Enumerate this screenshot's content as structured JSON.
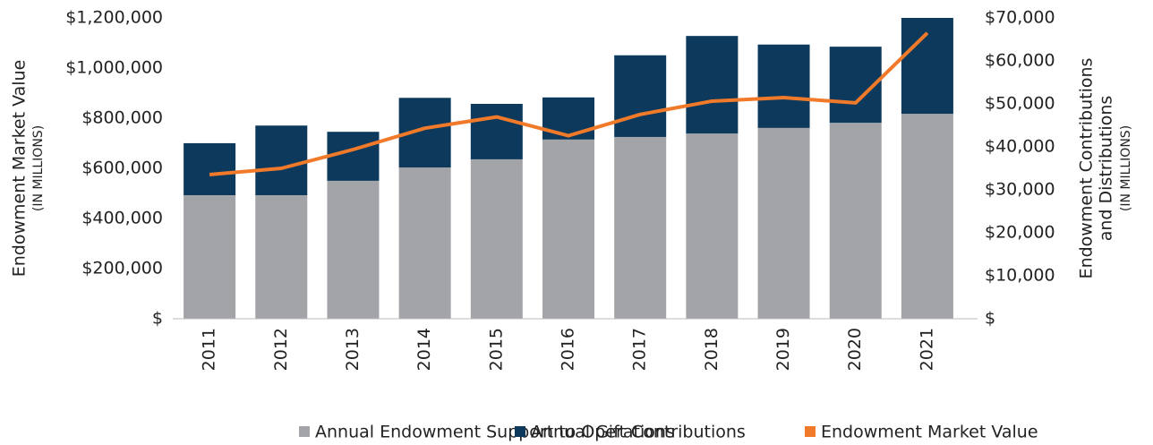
{
  "chart_data": {
    "type": "bar",
    "y_label": "Endowment Market Value",
    "y_label_sub": "(IN MILLIONS)",
    "y2_label": [
      "Endowment Contributions",
      "and Distributions"
    ],
    "y2_label_sub": "(IN MILLIONS)",
    "categories": [
      "2011",
      "2012",
      "2013",
      "2014",
      "2015",
      "2016",
      "2017",
      "2018",
      "2019",
      "2020",
      "2021"
    ],
    "series": [
      {
        "name": "Annual Endowment Support to Operations",
        "type": "bar",
        "axis": "y2",
        "color": "#a2a4a7",
        "values": [
          28750,
          28750,
          32100,
          35200,
          37100,
          41700,
          42300,
          43100,
          44400,
          45600,
          47700
        ]
      },
      {
        "name": "Annual Gift Contributions",
        "type": "bar",
        "axis": "y2",
        "color": "#0d3a5c",
        "values": [
          12100,
          16200,
          11400,
          16200,
          12900,
          9800,
          19000,
          22700,
          19400,
          17700,
          22300
        ]
      },
      {
        "name": "Endowment Market Value",
        "type": "line",
        "axis": "y",
        "color": "#f07a2a",
        "values": [
          575000,
          600000,
          675000,
          760000,
          805000,
          730000,
          815000,
          868000,
          882000,
          861000,
          1140000
        ]
      }
    ],
    "ylim": [
      0,
      1200000
    ],
    "yticks": [
      {
        "value": 0,
        "label": "$"
      },
      {
        "value": 200000,
        "label": "$200,000"
      },
      {
        "value": 400000,
        "label": "$400,000"
      },
      {
        "value": 600000,
        "label": "$600,000"
      },
      {
        "value": 800000,
        "label": "$800,000"
      },
      {
        "value": 1000000,
        "label": "$1,000,000"
      },
      {
        "value": 1200000,
        "label": "$1,200,000"
      }
    ],
    "y2lim": [
      0,
      70000
    ],
    "y2ticks": [
      {
        "value": 0,
        "label": "$"
      },
      {
        "value": 10000,
        "label": "$10,000"
      },
      {
        "value": 20000,
        "label": "$20,000"
      },
      {
        "value": 30000,
        "label": "$30,000"
      },
      {
        "value": 40000,
        "label": "$40,000"
      },
      {
        "value": 50000,
        "label": "$50,000"
      },
      {
        "value": 60000,
        "label": "$60,000"
      },
      {
        "value": 70000,
        "label": "$70,000"
      }
    ],
    "legend": "bottom"
  }
}
